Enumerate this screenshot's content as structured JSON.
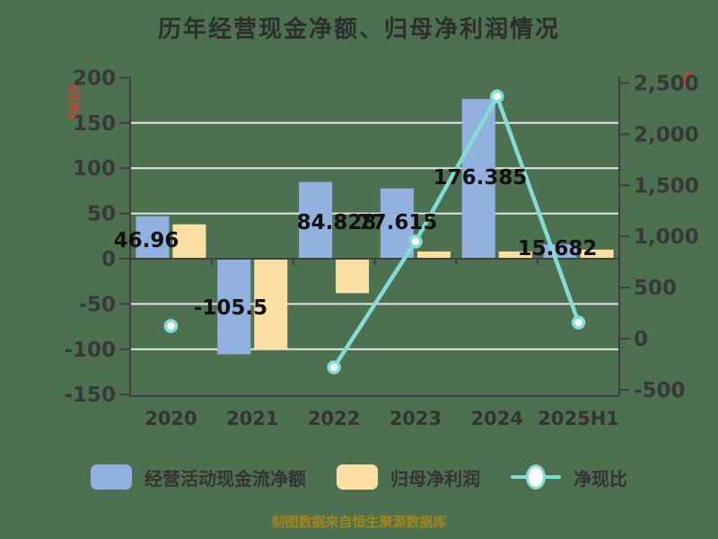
{
  "title": "历年经营现金净额、归母净利润情况",
  "caption": "制图数据来自恒生聚源数据库",
  "axis_units": {
    "left": "(亿元)",
    "right": "%"
  },
  "colors": {
    "background": "#4d7150",
    "bar_blue": "#93b1df",
    "bar_yellow": "#fcdfa3",
    "line_teal": "#85dcd6",
    "marker_fill": "#ffffff",
    "axis_unit_red": "#e03c2d",
    "grid_line": "#e4e6e3",
    "axis_dark": "#3f3f3f",
    "tick_text": "#383838",
    "label_text": "#111111",
    "caption_gold": "#a3861b"
  },
  "legend": {
    "items": [
      {
        "label": "经营活动现金流净额",
        "type": "bar",
        "color": "#93b1df"
      },
      {
        "label": "归母净利润",
        "type": "bar",
        "color": "#fcdfa3"
      },
      {
        "label": "净现比",
        "type": "line",
        "color": "#85dcd6"
      }
    ]
  },
  "chart_data": {
    "type": "bar+line",
    "categories": [
      "2020",
      "2021",
      "2022",
      "2023",
      "2024",
      "2025H1"
    ],
    "series": [
      {
        "name": "经营活动现金流净额",
        "type": "bar",
        "yaxis": "left",
        "color": "#93b1df",
        "values": [
          46.96,
          -105.5,
          84.828,
          77.615,
          176.385,
          15.682
        ],
        "data_labels": [
          "46.96",
          "-105.5",
          "84.828",
          "77.615",
          "176.385",
          "15.682"
        ]
      },
      {
        "name": "归母净利润",
        "type": "bar",
        "yaxis": "left",
        "color": "#fcdfa3",
        "values": [
          38,
          -100,
          -38,
          8,
          8,
          10
        ]
      },
      {
        "name": "净现比",
        "type": "line",
        "yaxis": "right",
        "color": "#85dcd6",
        "values": [
          124,
          null,
          -280,
          950,
          2370,
          158
        ]
      }
    ],
    "left_axis": {
      "unit": "亿元",
      "min": -150,
      "max": 200,
      "tick_step": 50,
      "tick_values": [
        200,
        150,
        100,
        50,
        0,
        -50,
        -100,
        -150
      ],
      "tick_labels": [
        "200",
        "150",
        "100",
        "50",
        "0",
        "-50",
        "-100",
        "-150"
      ],
      "grid_values": [
        150,
        100,
        50,
        -50,
        -100
      ]
    },
    "right_axis": {
      "unit": "%",
      "min": -500,
      "max": 2500,
      "tick_step": 500,
      "tick_values": [
        2500,
        2000,
        1500,
        1000,
        500,
        0,
        -500
      ],
      "tick_labels": [
        "2,500",
        "2,000",
        "1,500",
        "1,000",
        "500",
        "0",
        "-500"
      ]
    },
    "grid": true,
    "legend_position": "bottom"
  }
}
